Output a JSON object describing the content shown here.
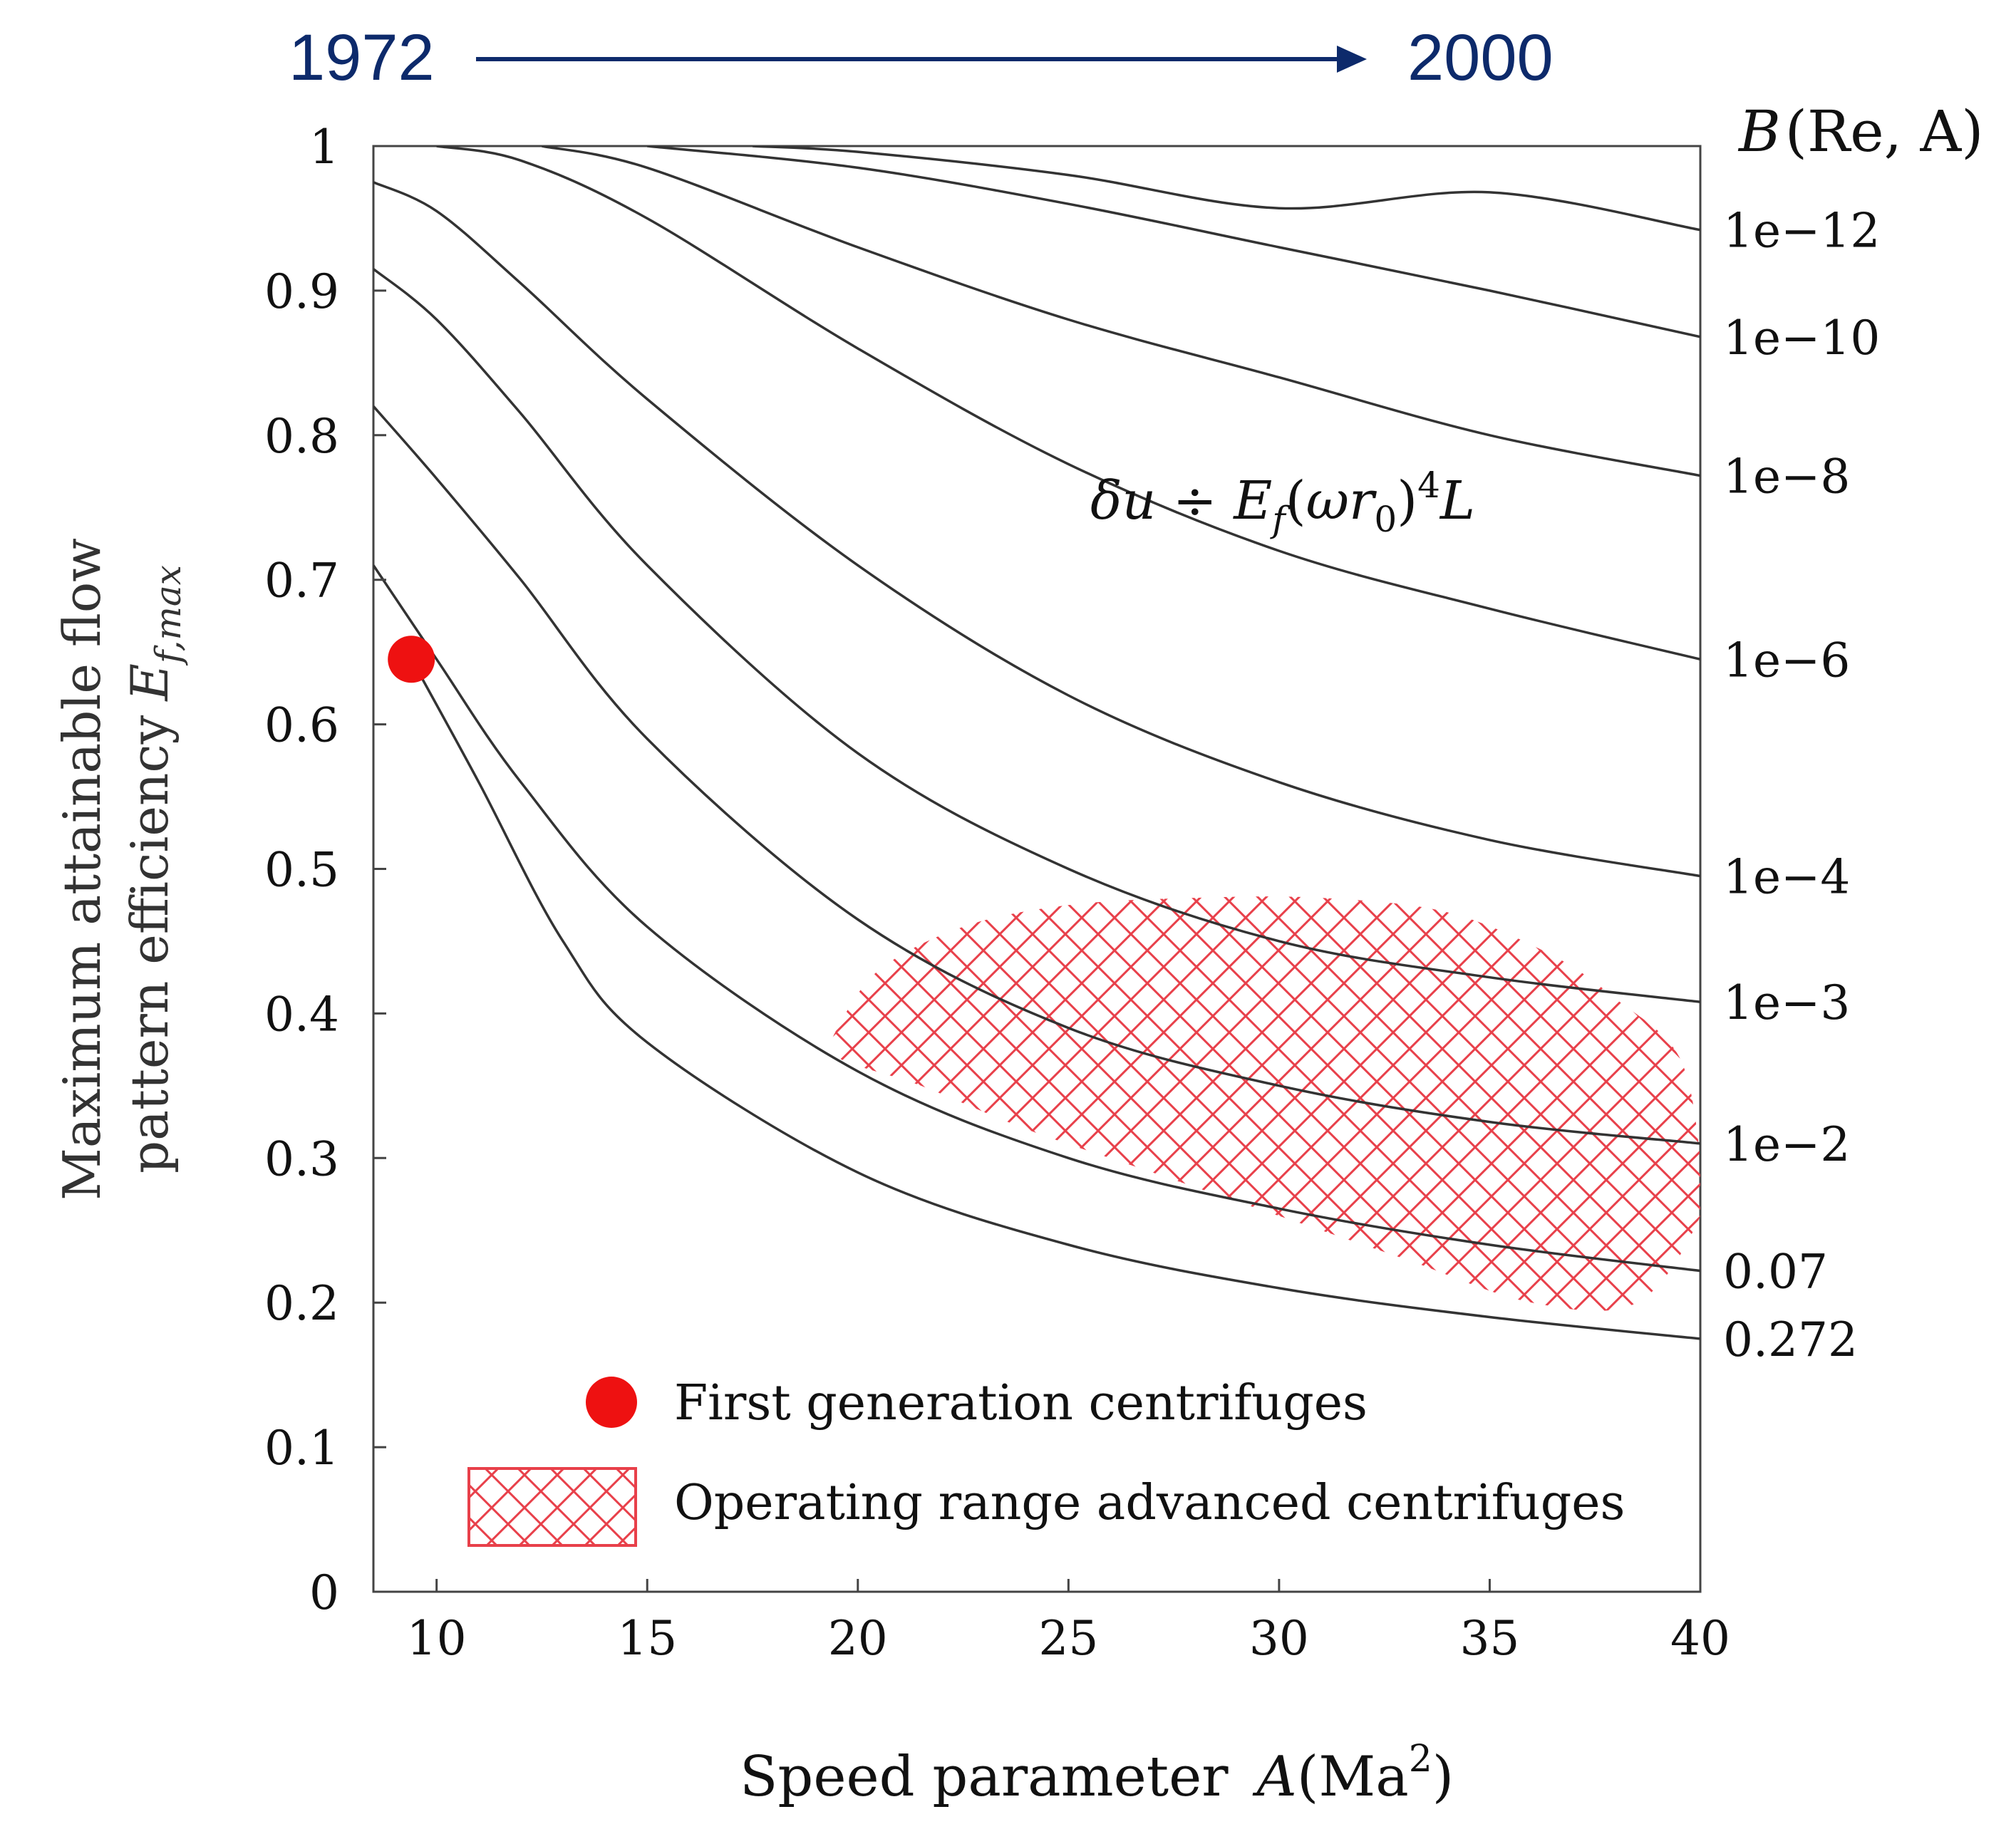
{
  "chart_data": {
    "type": "line",
    "timeline": {
      "start_label": "1972",
      "end_label": "2000",
      "color": "#0d2a6b"
    },
    "xlabel": "Speed parameter",
    "xlabel_symbol": "A",
    "xlabel_unit_base": "Ma",
    "xlabel_unit_exp": "2",
    "ylabel_line1": "Maximum attainable flow",
    "ylabel_line2": "pattern efficiency",
    "ylabel_symbol": "E",
    "ylabel_subscript": "f,max",
    "right_axis_title": "B",
    "right_axis_args": "(Re, A)",
    "xlim": [
      8.5,
      40
    ],
    "ylim": [
      0,
      1
    ],
    "x_ticks": [
      10,
      15,
      20,
      25,
      30,
      35,
      40
    ],
    "x_tick_labels": [
      "10",
      "15",
      "20",
      "25",
      "30",
      "35",
      "40"
    ],
    "y_ticks": [
      0,
      0.1,
      0.2,
      0.3,
      0.4,
      0.5,
      0.6,
      0.7,
      0.8,
      0.9,
      1
    ],
    "y_tick_labels": [
      "0",
      "0.1",
      "0.2",
      "0.3",
      "0.4",
      "0.5",
      "0.6",
      "0.7",
      "0.8",
      "0.9",
      "1"
    ],
    "grid": false,
    "annotation": "δu ÷ E_f(ωr_0)^4 L",
    "series": [
      {
        "name": "1e-12",
        "label": "1e−12",
        "x": [
          17.5,
          20,
          25,
          30,
          35,
          40
        ],
        "y": [
          1.0,
          0.996,
          0.98,
          0.957,
          0.968,
          0.942
        ]
      },
      {
        "name": "1e-10",
        "label": "1e−10",
        "x": [
          15,
          20,
          25,
          30,
          35,
          40
        ],
        "y": [
          1.0,
          0.985,
          0.96,
          0.93,
          0.9,
          0.868
        ]
      },
      {
        "name": "1e-8",
        "label": "1e−8",
        "x": [
          12.5,
          15,
          20,
          25,
          30,
          35,
          40
        ],
        "y": [
          1.0,
          0.985,
          0.93,
          0.88,
          0.84,
          0.8,
          0.772
        ]
      },
      {
        "name": "1e-6",
        "label": "1e−6",
        "x": [
          10,
          12,
          15,
          20,
          25,
          30,
          35,
          40
        ],
        "y": [
          1.0,
          0.99,
          0.95,
          0.86,
          0.78,
          0.72,
          0.68,
          0.645
        ]
      },
      {
        "name": "1e-4",
        "label": "1e−4",
        "x": [
          8.5,
          10,
          12,
          15,
          20,
          25,
          30,
          35,
          40
        ],
        "y": [
          0.975,
          0.955,
          0.905,
          0.825,
          0.71,
          0.62,
          0.56,
          0.52,
          0.495
        ]
      },
      {
        "name": "1e-3",
        "label": "1e−3",
        "x": [
          8.5,
          10,
          12,
          15,
          20,
          25,
          30,
          35,
          40
        ],
        "y": [
          0.915,
          0.88,
          0.815,
          0.71,
          0.58,
          0.5,
          0.45,
          0.425,
          0.408
        ]
      },
      {
        "name": "1e-2",
        "label": "1e−2",
        "x": [
          8.5,
          10,
          12,
          15,
          20,
          25,
          30,
          35,
          40
        ],
        "y": [
          0.82,
          0.77,
          0.7,
          0.59,
          0.465,
          0.39,
          0.35,
          0.325,
          0.31
        ]
      },
      {
        "name": "0.07",
        "label": "0.07",
        "x": [
          8.5,
          10,
          12,
          15,
          20,
          25,
          30,
          35,
          40
        ],
        "y": [
          0.71,
          0.645,
          0.56,
          0.46,
          0.36,
          0.3,
          0.265,
          0.24,
          0.222
        ]
      },
      {
        "name": "0.272",
        "label": "0.272",
        "x": [
          9.5,
          11,
          13,
          15,
          20,
          25,
          30,
          35,
          40
        ],
        "y": [
          0.64,
          0.56,
          0.45,
          0.38,
          0.29,
          0.24,
          0.21,
          0.19,
          0.175
        ]
      }
    ],
    "first_generation_point": {
      "x": 9.4,
      "y": 0.645,
      "label": "First generation centrifuges"
    },
    "operating_range": {
      "label": "Operating range advanced centrifuges",
      "polygon_xy": [
        [
          19.5,
          0.39
        ],
        [
          20.5,
          0.43
        ],
        [
          22.5,
          0.46
        ],
        [
          25,
          0.475
        ],
        [
          28,
          0.48
        ],
        [
          31,
          0.48
        ],
        [
          34,
          0.47
        ],
        [
          36.5,
          0.44
        ],
        [
          38,
          0.41
        ],
        [
          39.5,
          0.37
        ],
        [
          40,
          0.3
        ],
        [
          40,
          0.26
        ],
        [
          38.5,
          0.2
        ],
        [
          36,
          0.2
        ],
        [
          33,
          0.23
        ],
        [
          30,
          0.26
        ],
        [
          27,
          0.29
        ],
        [
          24,
          0.32
        ],
        [
          21.5,
          0.35
        ],
        [
          19.5,
          0.37
        ]
      ]
    },
    "colors": {
      "curve": "#333333",
      "marker": "#ee1111",
      "hatch": "#e8404a",
      "axis": "#444444",
      "text": "#111111"
    }
  }
}
